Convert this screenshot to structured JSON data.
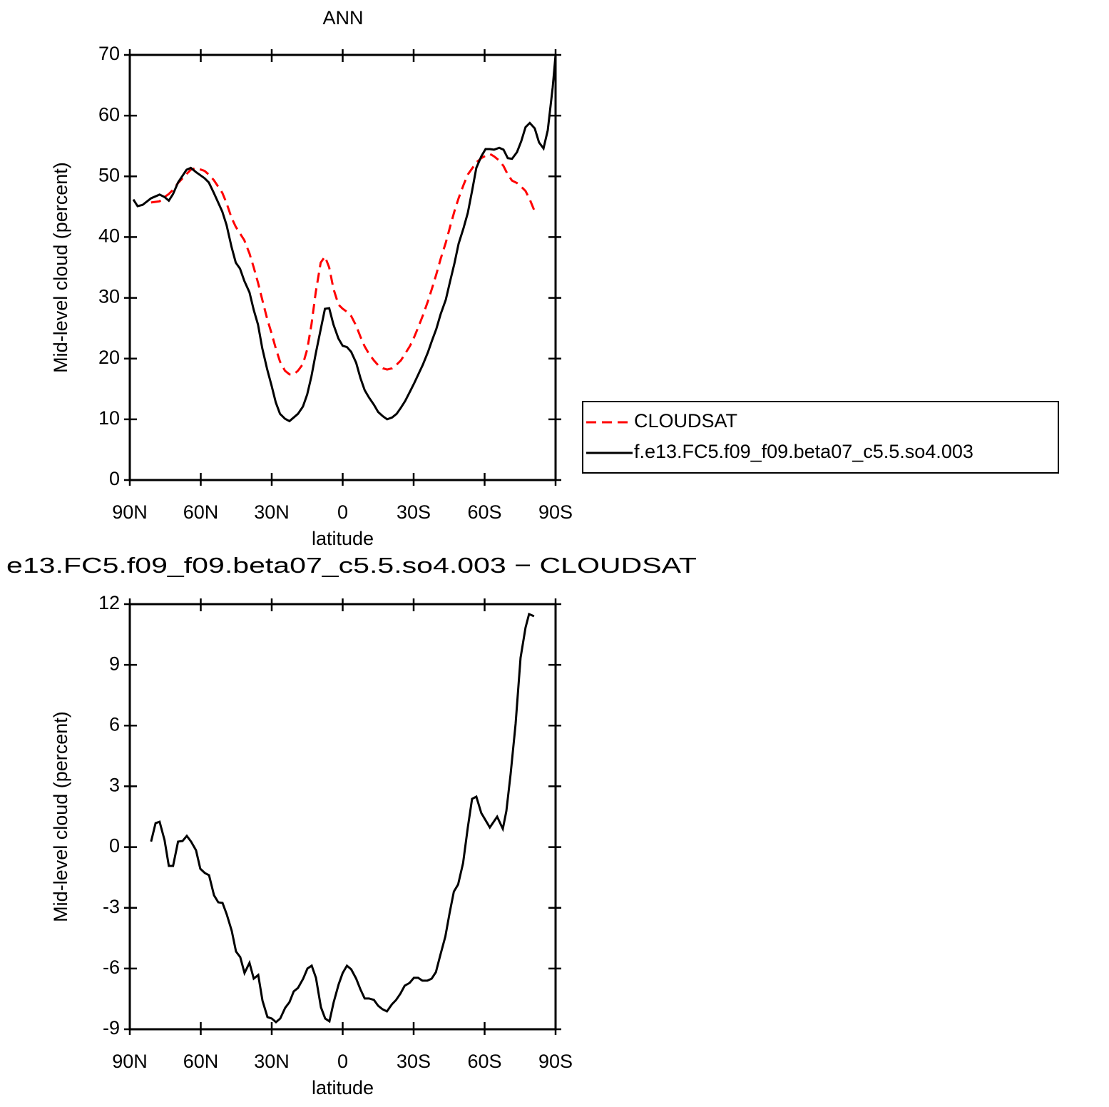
{
  "chart_data": [
    {
      "type": "line",
      "title": "ANN",
      "x_label": "latitude",
      "y_label": "Mid-level cloud (percent)",
      "x": [
        88.5,
        86.7,
        84.6,
        81.0,
        77.4,
        75.3,
        73.5,
        71.7,
        69.6,
        66.0,
        64.2,
        62.0,
        58.4,
        56.6,
        54.5,
        50.9,
        49.1,
        47.0,
        45.2,
        43.4,
        41.6,
        39.4,
        37.6,
        35.8,
        34.0,
        31.9,
        30.1,
        28.3,
        26.5,
        24.4,
        22.5,
        20.7,
        18.9,
        16.8,
        15.0,
        13.2,
        11.4,
        9.3,
        7.5,
        5.7,
        3.9,
        1.8,
        0,
        -1.8,
        -3.6,
        -5.7,
        -7.5,
        -9.3,
        -11.1,
        -13.2,
        -15.0,
        -17.0,
        -18.8,
        -20.9,
        -22.8,
        -24.6,
        -26.4,
        -28.5,
        -30.3,
        -32.1,
        -33.9,
        -36.0,
        -37.8,
        -39.6,
        -41.4,
        -43.6,
        -45.4,
        -47.2,
        -49.0,
        -51.1,
        -52.9,
        -54.7,
        -56.5,
        -58.6,
        -60.4,
        -62.2,
        -64.0,
        -66.2,
        -68.0,
        -69.8,
        -71.6,
        -73.7,
        -75.5,
        -77.3,
        -79.1,
        -81.2,
        -83.0,
        -84.9,
        -86.7,
        -88.8,
        -90
      ],
      "series": [
        {
          "name": "CLOUDSAT",
          "color": "#ff0000",
          "line_style": "dashed",
          "values": [
            null,
            null,
            null,
            45.7,
            45.9,
            46.6,
            47.1,
            47.8,
            48.9,
            50.4,
            51.1,
            51.4,
            50.9,
            50.3,
            49.4,
            47.3,
            45.6,
            43.2,
            41.7,
            40.6,
            39.5,
            37.3,
            35.0,
            32.5,
            29.7,
            26.5,
            24.2,
            21.7,
            19.5,
            18.0,
            17.4,
            17.4,
            18.0,
            19.1,
            21.5,
            25.6,
            30.9,
            35.8,
            36.8,
            35.0,
            31.5,
            28.9,
            28.2,
            27.7,
            27.0,
            25.4,
            23.6,
            22.0,
            20.8,
            19.7,
            18.9,
            18.4,
            18.2,
            18.4,
            19.0,
            19.7,
            20.8,
            22.1,
            23.6,
            25.3,
            27.1,
            29.4,
            31.6,
            33.9,
            36.4,
            39.1,
            41.7,
            44.2,
            46.4,
            48.6,
            50.3,
            51.3,
            52.3,
            53.0,
            53.4,
            53.7,
            53.3,
            52.6,
            51.7,
            50.3,
            49.3,
            48.9,
            48.3,
            47.6,
            46.2,
            44.2,
            null,
            null,
            null,
            null,
            null
          ]
        },
        {
          "name": "f.e13.FC5.f09_f09.beta07_c5.5.so4.003",
          "color": "#000000",
          "line_style": "solid",
          "values": [
            46.2,
            45.1,
            45.3,
            46.4,
            47.0,
            46.6,
            46.0,
            47.1,
            49.0,
            51.1,
            51.4,
            50.7,
            49.7,
            49.0,
            47.3,
            44.2,
            42.0,
            38.4,
            35.8,
            34.8,
            32.8,
            30.9,
            28.0,
            25.6,
            21.7,
            18.2,
            15.6,
            12.8,
            10.9,
            10.1,
            9.7,
            10.3,
            10.9,
            12.1,
            14.1,
            17.1,
            20.8,
            24.8,
            28.2,
            28.3,
            25.6,
            23.3,
            22.1,
            21.9,
            21.1,
            19.3,
            16.8,
            14.8,
            13.6,
            12.4,
            11.2,
            10.5,
            10.0,
            10.3,
            10.9,
            11.9,
            13.0,
            14.6,
            16.0,
            17.5,
            19.0,
            21.0,
            23.0,
            24.9,
            27.3,
            29.7,
            32.7,
            35.6,
            38.9,
            41.5,
            44.0,
            47.6,
            51.4,
            53.3,
            54.5,
            54.5,
            54.4,
            54.7,
            54.4,
            53.0,
            52.9,
            54.0,
            55.8,
            58.1,
            58.8,
            57.9,
            55.6,
            54.6,
            57.6,
            64.7,
            70.0
          ]
        }
      ],
      "xlim": [
        90,
        -90
      ],
      "xticks": [
        {
          "value": 90,
          "label": "90N"
        },
        {
          "value": 60,
          "label": "60N"
        },
        {
          "value": 30,
          "label": "30N"
        },
        0,
        {
          "value": -30,
          "label": "30S"
        },
        {
          "value": -60,
          "label": "60S"
        },
        {
          "value": -90,
          "label": "90S"
        }
      ],
      "ylim": [
        0,
        70
      ],
      "yticks": [
        0,
        10,
        20,
        30,
        40,
        50,
        60,
        70
      ],
      "legend": "outside right"
    },
    {
      "type": "line",
      "title": "e13.FC5.f09_f09.beta07_c5.5.so4.003 − CLOUDSAT",
      "x_label": "latitude",
      "y_label": "Mid-level cloud (percent)",
      "color": "#000000",
      "x": [
        81.0,
        79.1,
        77.4,
        75.3,
        73.5,
        71.7,
        69.6,
        67.7,
        65.9,
        64.1,
        62.0,
        60.2,
        58.3,
        56.5,
        54.4,
        52.6,
        50.8,
        49.0,
        46.9,
        45.1,
        43.3,
        41.5,
        39.4,
        37.6,
        35.7,
        33.9,
        31.8,
        30.0,
        28.2,
        26.4,
        24.3,
        22.5,
        20.7,
        18.9,
        16.7,
        14.9,
        13.1,
        11.3,
        9.2,
        7.4,
        5.6,
        3.8,
        1.7,
        0,
        -1.8,
        -3.6,
        -5.7,
        -7.5,
        -9.3,
        -11.1,
        -13.2,
        -15.0,
        -16.8,
        -18.7,
        -20.8,
        -22.6,
        -24.4,
        -26.2,
        -28.3,
        -30.1,
        -31.9,
        -33.7,
        -35.8,
        -37.6,
        -39.4,
        -41.2,
        -43.4,
        -45.2,
        -47.0,
        -48.8,
        -50.9,
        -52.9,
        -54.7,
        -56.5,
        -58.6,
        -62.2,
        -65.3,
        -67.7,
        -69.2,
        -71.0,
        -73.1,
        -75.2,
        -77.3,
        -78.8,
        -80.9
      ],
      "values": [
        0.27,
        1.18,
        1.25,
        0.34,
        -0.93,
        -0.93,
        0.27,
        0.3,
        0.55,
        0.27,
        -0.16,
        -1.07,
        -1.28,
        -1.39,
        -2.38,
        -2.73,
        -2.76,
        -3.33,
        -4.14,
        -5.16,
        -5.44,
        -6.22,
        -5.72,
        -6.5,
        -6.32,
        -7.59,
        -8.4,
        -8.47,
        -8.65,
        -8.47,
        -7.94,
        -7.66,
        -7.13,
        -6.96,
        -6.5,
        -6.0,
        -5.86,
        -6.46,
        -7.91,
        -8.47,
        -8.61,
        -7.66,
        -6.78,
        -6.22,
        -5.86,
        -6.04,
        -6.5,
        -7.03,
        -7.48,
        -7.48,
        -7.55,
        -7.84,
        -8.01,
        -8.12,
        -7.77,
        -7.55,
        -7.24,
        -6.85,
        -6.71,
        -6.46,
        -6.46,
        -6.6,
        -6.6,
        -6.5,
        -6.18,
        -5.37,
        -4.42,
        -3.26,
        -2.2,
        -1.85,
        -0.79,
        0.97,
        2.38,
        2.49,
        1.68,
        0.97,
        1.5,
        0.9,
        1.78,
        3.61,
        6.08,
        9.35,
        10.84,
        11.51,
        11.4
      ],
      "xlim": [
        90,
        -90
      ],
      "xticks": [
        {
          "value": 90,
          "label": "90N"
        },
        {
          "value": 60,
          "label": "60N"
        },
        {
          "value": 30,
          "label": "30N"
        },
        0,
        {
          "value": -30,
          "label": "30S"
        },
        {
          "value": -60,
          "label": "60S"
        },
        {
          "value": -90,
          "label": "90S"
        }
      ],
      "ylim": [
        -9,
        12
      ],
      "yticks": [
        -9,
        -6,
        -3,
        0,
        3,
        6,
        9,
        12
      ]
    }
  ]
}
